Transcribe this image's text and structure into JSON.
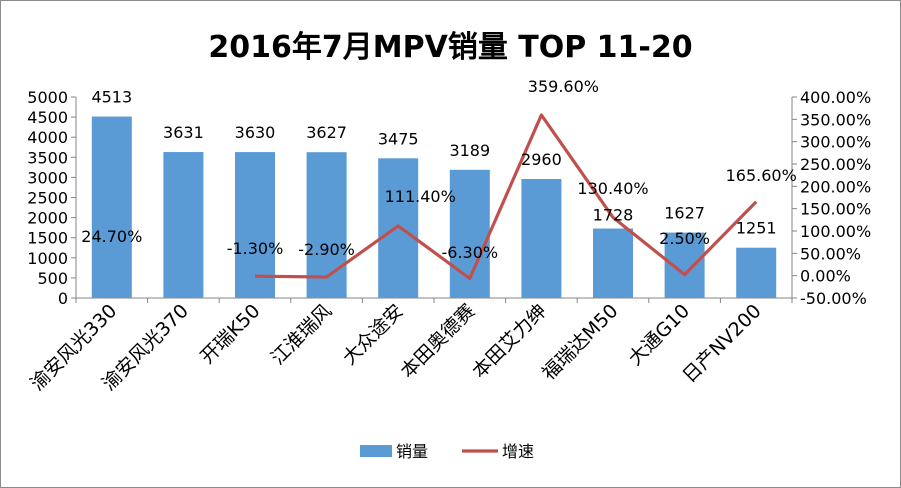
{
  "chart_data": {
    "type": "bar",
    "title": "2016年7月MPV销量  TOP 11-20",
    "categories": [
      "渝安风光330",
      "渝安风光370",
      "开瑞K50",
      "江淮瑞风",
      "大众途安",
      "本田奥德赛",
      "本田艾力绅",
      "福瑞达M50",
      "大通G10",
      "日产NV200"
    ],
    "series": [
      {
        "name": "销量",
        "kind": "bar",
        "axis": "left",
        "color": "#5b9bd5",
        "values": [
          4513,
          3631,
          3630,
          3627,
          3475,
          3189,
          2960,
          1728,
          1627,
          1251
        ],
        "labels": [
          "4513",
          "3631",
          "3630",
          "3627",
          "3475",
          "3189",
          "2960",
          "1728",
          "1627",
          "1251"
        ]
      },
      {
        "name": "增速",
        "kind": "line",
        "axis": "right",
        "color": "#c0504d",
        "values": [
          24.7,
          null,
          -1.3,
          -2.9,
          111.4,
          -6.3,
          359.6,
          130.4,
          2.5,
          165.6
        ],
        "labels": [
          "24.70%",
          "",
          "-1.30%",
          "-2.90%",
          "111.40%",
          "-6.30%",
          "359.60%",
          "130.40%",
          "2.50%",
          "165.60%"
        ]
      }
    ],
    "yleft": {
      "min": 0,
      "max": 5000,
      "step": 500,
      "ticks": [
        "0",
        "500",
        "1000",
        "1500",
        "2000",
        "2500",
        "3000",
        "3500",
        "4000",
        "4500",
        "5000"
      ]
    },
    "yright": {
      "min": -50,
      "max": 400,
      "step": 50,
      "ticks": [
        "-50.00%",
        "0.00%",
        "50.00%",
        "100.00%",
        "150.00%",
        "200.00%",
        "250.00%",
        "300.00%",
        "350.00%",
        "400.00%"
      ]
    },
    "grid": false,
    "legend": "bottom-center"
  }
}
